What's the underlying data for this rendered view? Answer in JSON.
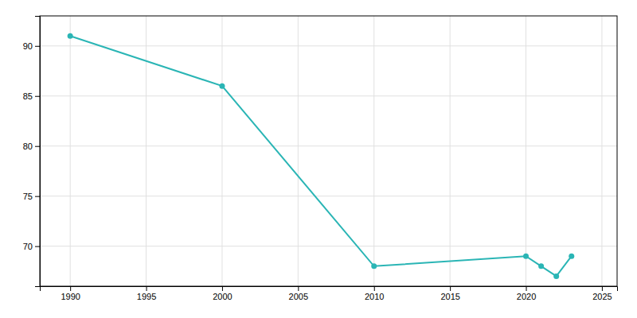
{
  "chart_data": {
    "type": "line",
    "x": [
      1990,
      2000,
      2010,
      2020,
      2021,
      2022,
      2023
    ],
    "values": [
      91,
      86,
      68,
      69,
      68,
      67,
      69
    ],
    "color": "#2ab5b5",
    "marker": "circle",
    "xlim": [
      1988,
      2026
    ],
    "ylim": [
      66,
      93
    ],
    "xticks": [
      1990,
      1995,
      2000,
      2005,
      2010,
      2015,
      2020,
      2025
    ],
    "yticks": [
      70,
      75,
      80,
      85,
      90
    ],
    "grid": true
  }
}
